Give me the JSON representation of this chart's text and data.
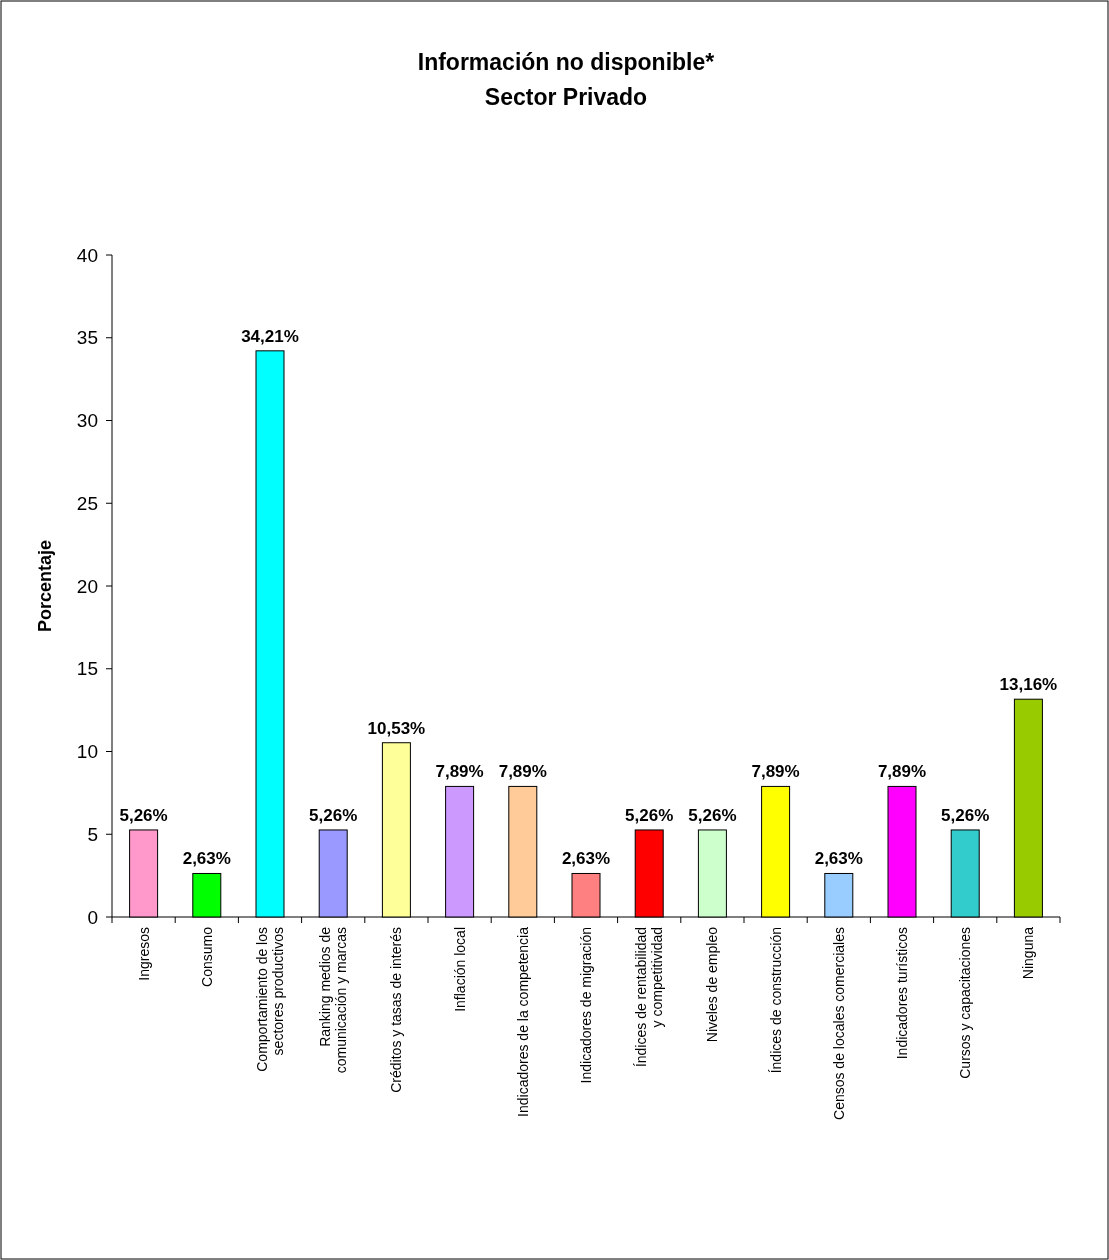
{
  "chart_data": {
    "type": "bar",
    "title": "Información no disponible*",
    "subtitle": "Sector Privado",
    "ylabel": "Porcentaje",
    "categories": [
      "Ingresos",
      "Consumo",
      "Comportamiento de los sectores productivos",
      "Ranking medios de comunicación y marcas",
      "Créditos y tasas de interés",
      "Inflación local",
      "Indicadores de la competencia",
      "Indicadores de migración",
      "Índices de rentabilidad y competitividad",
      "Niveles de empleo",
      "Índices de construcción",
      "Censos de locales comerciales",
      "Indicadores turísticos",
      "Cursos y capacitaciones",
      "Ninguna"
    ],
    "values": [
      5.26,
      2.63,
      34.21,
      5.26,
      10.53,
      7.89,
      7.89,
      2.63,
      5.26,
      5.26,
      7.89,
      2.63,
      7.89,
      5.26,
      13.16
    ],
    "value_labels": [
      "5,26%",
      "2,63%",
      "34,21%",
      "5,26%",
      "10,53%",
      "7,89%",
      "7,89%",
      "2,63%",
      "5,26%",
      "5,26%",
      "7,89%",
      "2,63%",
      "7,89%",
      "5,26%",
      "13,16%"
    ],
    "colors": [
      "#ff99cc",
      "#00ff00",
      "#00ffff",
      "#9999ff",
      "#ffff99",
      "#cc99ff",
      "#ffcc99",
      "#ff8080",
      "#ff0000",
      "#ccffcc",
      "#ffff00",
      "#99ccff",
      "#ff00ff",
      "#33cccc",
      "#99cc00"
    ],
    "ylim": [
      0,
      40
    ],
    "yticks": [
      0,
      5,
      10,
      15,
      20,
      25,
      30,
      35,
      40
    ]
  }
}
